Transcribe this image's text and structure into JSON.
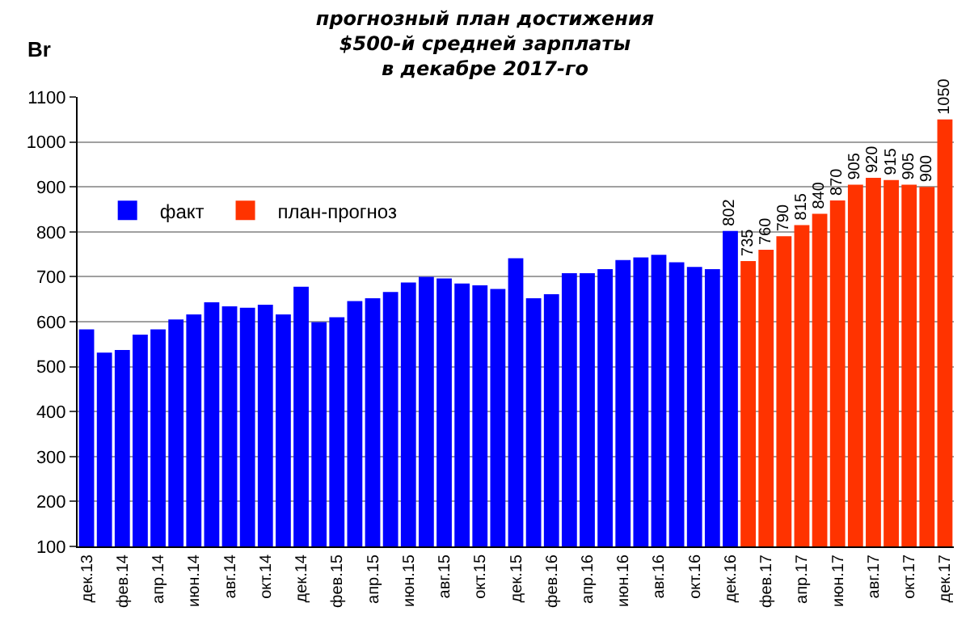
{
  "chart_data": {
    "type": "bar",
    "title": "прогнозный план достижения\n$500-й средней зарплаты\nв декабре 2017-го",
    "ylabel": "Br",
    "categories": [
      "дек.13",
      null,
      "фев.14",
      null,
      "апр.14",
      null,
      "июн.14",
      null,
      "авг.14",
      null,
      "окт.14",
      null,
      "дек.14",
      null,
      "фев.15",
      null,
      "апр.15",
      null,
      "июн.15",
      null,
      "авг.15",
      null,
      "окт.15",
      null,
      "дек.15",
      null,
      "фев.16",
      null,
      "апр.16",
      null,
      "июн.16",
      null,
      "авг.16",
      null,
      "окт.16",
      null,
      "дек.16",
      null,
      "фев.17",
      null,
      "апр.17",
      null,
      "июн.17",
      null,
      "авг.17",
      null,
      "окт.17",
      null,
      "дек.17"
    ],
    "series": [
      {
        "name": "факт",
        "color": "#0000ff",
        "values": [
          583,
          531,
          537,
          571,
          583,
          605,
          616,
          643,
          634,
          631,
          638,
          616,
          678,
          599,
          610,
          646,
          652,
          666,
          687,
          700,
          696,
          685,
          681,
          673,
          741,
          652,
          661,
          708,
          708,
          717,
          737,
          743,
          749,
          732,
          722,
          717,
          802,
          null,
          null,
          null,
          null,
          null,
          null,
          null,
          null,
          null,
          null,
          null,
          null
        ],
        "value_labels": [
          null,
          null,
          null,
          null,
          null,
          null,
          null,
          null,
          null,
          null,
          null,
          null,
          null,
          null,
          null,
          null,
          null,
          null,
          null,
          null,
          null,
          null,
          null,
          null,
          null,
          null,
          null,
          null,
          null,
          null,
          null,
          null,
          null,
          null,
          null,
          null,
          "802",
          null,
          null,
          null,
          null,
          null,
          null,
          null,
          null,
          null,
          null,
          null,
          null
        ]
      },
      {
        "name": "план-прогноз",
        "color": "#ff3300",
        "values": [
          null,
          null,
          null,
          null,
          null,
          null,
          null,
          null,
          null,
          null,
          null,
          null,
          null,
          null,
          null,
          null,
          null,
          null,
          null,
          null,
          null,
          null,
          null,
          null,
          null,
          null,
          null,
          null,
          null,
          null,
          null,
          null,
          null,
          null,
          null,
          null,
          null,
          735,
          760,
          790,
          815,
          840,
          870,
          905,
          920,
          915,
          905,
          900,
          1050
        ],
        "value_labels": [
          null,
          null,
          null,
          null,
          null,
          null,
          null,
          null,
          null,
          null,
          null,
          null,
          null,
          null,
          null,
          null,
          null,
          null,
          null,
          null,
          null,
          null,
          null,
          null,
          null,
          null,
          null,
          null,
          null,
          null,
          null,
          null,
          null,
          null,
          null,
          null,
          null,
          "735",
          "760",
          "790",
          "815",
          "840",
          "870",
          "905",
          "920",
          "915",
          "905",
          "900",
          "1050"
        ]
      }
    ],
    "ylim": [
      100,
      1100
    ],
    "yticks": [
      100,
      200,
      300,
      400,
      500,
      600,
      700,
      800,
      900,
      1000,
      1100
    ],
    "grid": "y",
    "legend": "top left"
  }
}
